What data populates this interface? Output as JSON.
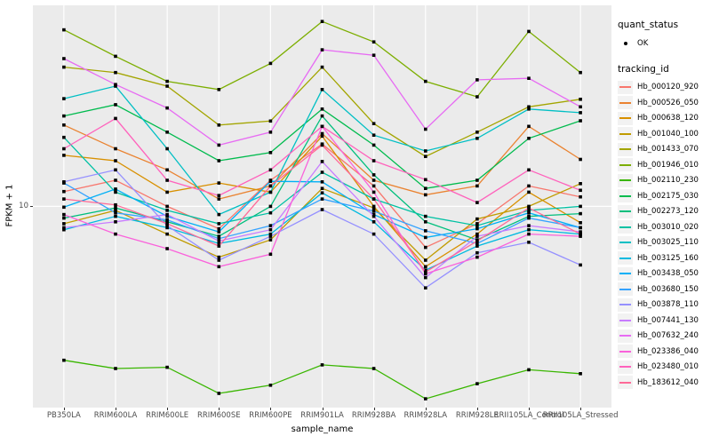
{
  "axes": {
    "x_title": "sample_name",
    "y_title": "FPKM + 1",
    "y_tick": "10"
  },
  "legend": {
    "quant_status_title": "quant_status",
    "quant_status_ok_label": "OK",
    "tracking_title": "tracking_id"
  },
  "chart_data": {
    "type": "line",
    "title": "",
    "xlabel": "sample_name",
    "ylabel": "FPKM + 1",
    "y_scale": "log10",
    "y_break": 10,
    "ylim": [
      0.75,
      133
    ],
    "grid": "major-white-on-grey",
    "legend_position": "right",
    "panel_bg": "#EBEBEB",
    "grid_color": "#FFFFFF",
    "point_color": "#000000",
    "x": [
      "PB350LA",
      "RRIM600LA",
      "RRIM600LE",
      "RRIM600SE",
      "RRIM600PE",
      "RRIM901LA",
      "RRIM928BA",
      "RRIM928LA",
      "RRIM928LE",
      "RRII105LA_Control",
      "RRII105LA_Stressed"
    ],
    "series": [
      {
        "name": "Hb_000120_920",
        "color": "#F8766D",
        "values": [
          12.1,
          14,
          10,
          7.5,
          14,
          22.3,
          13,
          5.9,
          8,
          13,
          11.3
        ]
      },
      {
        "name": "Hb_000526_050",
        "color": "#EA8331",
        "values": [
          28.5,
          21,
          16,
          11,
          13,
          25.5,
          14,
          11.6,
          13,
          28,
          18.3
        ]
      },
      {
        "name": "Hb_000638_120",
        "color": "#D89000",
        "values": [
          19.3,
          18,
          12,
          13.5,
          12,
          24.7,
          10,
          4.6,
          7,
          12,
          8.1
        ]
      },
      {
        "name": "Hb_001040_100",
        "color": "#C09B00",
        "values": [
          8.0,
          9.5,
          7.0,
          5.2,
          6.5,
          12.6,
          9.8,
          5.0,
          8.5,
          10,
          13.4
        ]
      },
      {
        "name": "Hb_001433_070",
        "color": "#A3A500",
        "values": [
          60,
          56,
          47,
          28.5,
          30,
          60,
          29,
          19,
          26,
          36,
          39.7
        ]
      },
      {
        "name": "Hb_001946_010",
        "color": "#7CAE00",
        "values": [
          97,
          69,
          50,
          45,
          63,
          108,
          83,
          50,
          41,
          95,
          56
        ]
      },
      {
        "name": "Hb_002110_230",
        "color": "#39B600",
        "values": [
          1.38,
          1.24,
          1.26,
          0.9,
          1.0,
          1.3,
          1.24,
          0.84,
          1.02,
          1.22,
          1.16
        ]
      },
      {
        "name": "Hb_002175_030",
        "color": "#00BB4E",
        "values": [
          32,
          37,
          26,
          18,
          20,
          35,
          22,
          12.6,
          14,
          24,
          30.1
        ]
      },
      {
        "name": "Hb_002273_120",
        "color": "#00BF7D",
        "values": [
          8.6,
          9.8,
          8.2,
          6.8,
          10,
          32,
          15,
          8.2,
          6.5,
          8.8,
          9.1
        ]
      },
      {
        "name": "Hb_003010_020",
        "color": "#00C1A3",
        "values": [
          24.3,
          12,
          9.5,
          8.0,
          9.2,
          15.5,
          11,
          8.8,
          7.8,
          9.5,
          10.0
        ]
      },
      {
        "name": "Hb_003025_110",
        "color": "#00BFC4",
        "values": [
          40,
          47,
          21,
          9.0,
          12,
          45,
          25,
          20.4,
          24,
          35,
          33.4
        ]
      },
      {
        "name": "Hb_003125_160",
        "color": "#00BAE0",
        "values": [
          7.4,
          8.8,
          7.6,
          6.2,
          7.0,
          11.9,
          8.2,
          4.4,
          6.0,
          7.4,
          7.0
        ]
      },
      {
        "name": "Hb_003438_050",
        "color": "#00B0F6",
        "values": [
          9.9,
          12.5,
          8.8,
          7.2,
          13.8,
          13.7,
          9.0,
          6.7,
          7.5,
          9.2,
          7.6
        ]
      },
      {
        "name": "Hb_003680_150",
        "color": "#35A2FF",
        "values": [
          13.5,
          9.2,
          8.4,
          6.6,
          7.8,
          11.0,
          9.4,
          7.3,
          6.2,
          8.6,
          7.6
        ]
      },
      {
        "name": "Hb_003878_110",
        "color": "#9590FF",
        "values": [
          13.7,
          16,
          7.8,
          5.0,
          6.8,
          9.6,
          7.0,
          3.5,
          5.5,
          6.3,
          4.7
        ]
      },
      {
        "name": "Hb_007441_130",
        "color": "#C77CFF",
        "values": [
          7.6,
          8.2,
          9.0,
          6.4,
          7.4,
          17.8,
          8.8,
          4.0,
          6.8,
          7.8,
          7.2
        ]
      },
      {
        "name": "Hb_007632_240",
        "color": "#E76BF3",
        "values": [
          67,
          48,
          35.5,
          22,
          26,
          75,
          70,
          27,
          51,
          52,
          36
        ]
      },
      {
        "name": "Hb_023386_040",
        "color": "#FA62DB",
        "values": [
          9.0,
          7.0,
          5.8,
          4.6,
          5.4,
          28,
          12,
          4.2,
          5.2,
          7.0,
          6.8
        ]
      },
      {
        "name": "Hb_023480_010",
        "color": "#FF62BC",
        "values": [
          21,
          31,
          14,
          11.5,
          16,
          28,
          18,
          14.1,
          10.5,
          16,
          12.3
        ]
      },
      {
        "name": "Hb_183612_040",
        "color": "#FF6A98",
        "values": [
          11.0,
          10.2,
          8.0,
          6.0,
          13,
          22,
          11,
          4.3,
          6.4,
          9.8,
          7.0
        ]
      }
    ]
  }
}
